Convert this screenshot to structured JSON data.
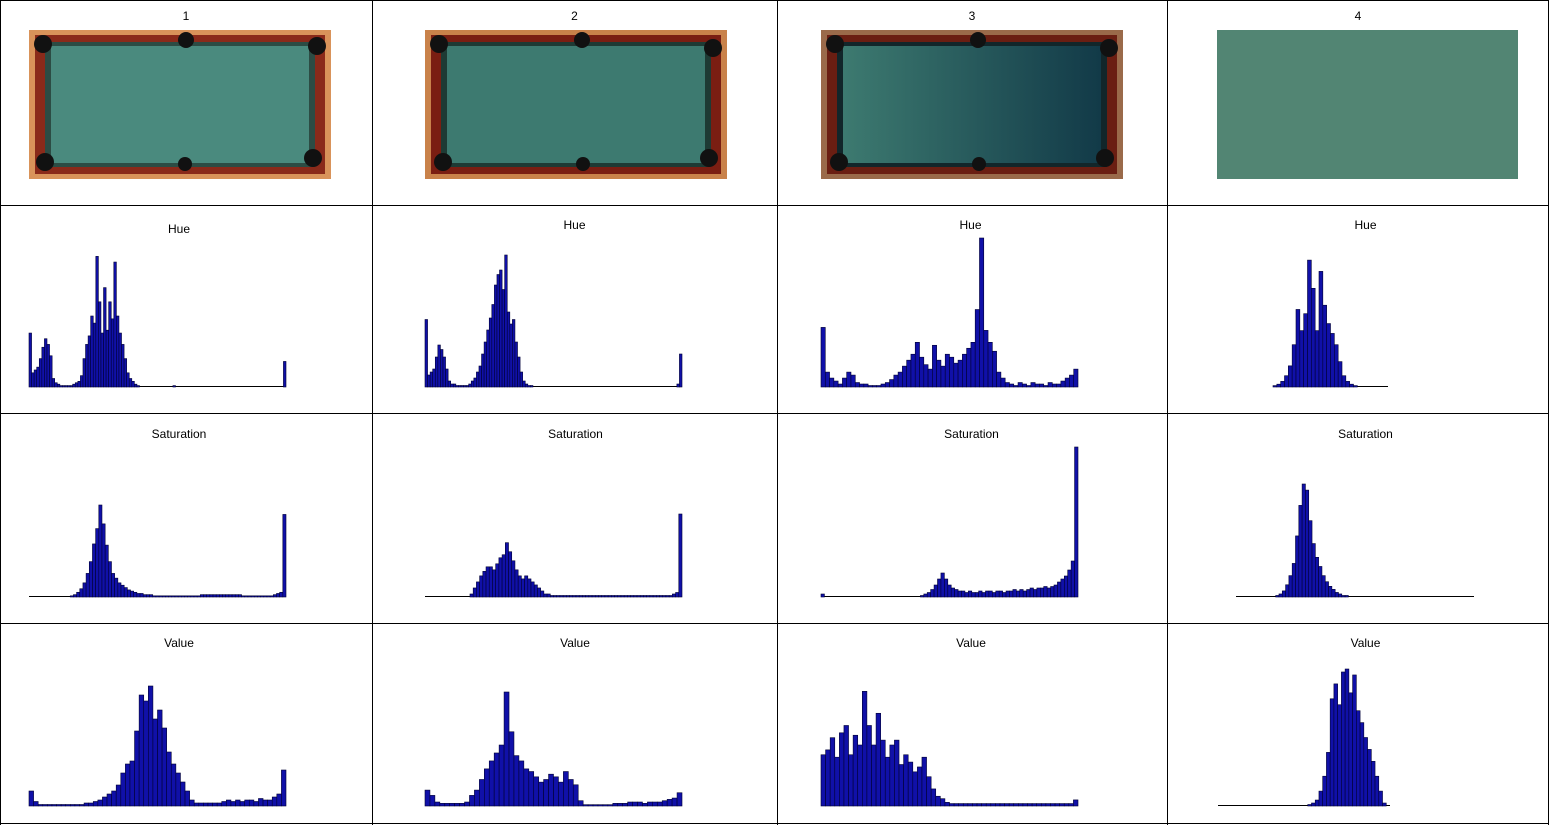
{
  "columns": [
    {
      "label": "1",
      "image": "pool-table-full-bright"
    },
    {
      "label": "2",
      "image": "pool-table-full-medium"
    },
    {
      "label": "3",
      "image": "pool-table-full-dark"
    },
    {
      "label": "4",
      "image": "pool-table-felt-crop"
    }
  ],
  "row_titles": {
    "hue": "Hue",
    "saturation": "Saturation",
    "value": "Value"
  },
  "colors": {
    "bar_fill": "#1010a8",
    "bar_edge": "#000033",
    "felt": "#3d7a70",
    "rail": "#8a2a1a",
    "wood": "#d79a5a"
  },
  "chart_data": [
    {
      "type": "bar",
      "title": "Hue",
      "column": "1",
      "values": [
        38,
        10,
        12,
        14,
        20,
        28,
        34,
        30,
        22,
        6,
        3,
        2,
        1,
        1,
        1,
        1,
        1,
        2,
        3,
        4,
        8,
        20,
        30,
        36,
        50,
        45,
        92,
        60,
        38,
        70,
        40,
        60,
        48,
        88,
        50,
        38,
        30,
        20,
        10,
        6,
        4,
        2,
        1,
        0,
        0,
        0,
        0,
        0,
        0,
        0,
        0,
        0,
        0,
        0,
        0,
        0,
        1,
        0,
        0,
        0,
        0,
        0,
        0,
        0,
        0,
        0,
        0,
        0,
        0,
        0,
        0,
        0,
        0,
        0,
        0,
        0,
        0,
        0,
        0,
        0,
        0,
        0,
        0,
        0,
        0,
        0,
        0,
        0,
        0,
        0,
        0,
        0,
        0,
        0,
        0,
        0,
        0,
        0,
        0,
        18
      ]
    },
    {
      "type": "bar",
      "title": "Hue",
      "column": "2",
      "values": [
        45,
        8,
        10,
        12,
        20,
        28,
        25,
        20,
        12,
        4,
        2,
        2,
        1,
        1,
        1,
        1,
        1,
        2,
        4,
        6,
        10,
        14,
        22,
        30,
        38,
        46,
        55,
        68,
        75,
        78,
        65,
        88,
        50,
        42,
        45,
        30,
        20,
        10,
        4,
        2,
        1,
        1,
        0,
        0,
        0,
        0,
        0,
        0,
        0,
        0,
        0,
        0,
        0,
        0,
        0,
        0,
        0,
        0,
        0,
        0,
        0,
        0,
        0,
        0,
        0,
        0,
        0,
        0,
        0,
        0,
        0,
        0,
        0,
        0,
        0,
        0,
        0,
        0,
        0,
        0,
        0,
        0,
        0,
        0,
        0,
        0,
        0,
        0,
        0,
        0,
        0,
        0,
        0,
        0,
        0,
        0,
        0,
        0,
        2,
        22
      ]
    },
    {
      "type": "bar",
      "title": "Hue",
      "column": "3",
      "values": [
        40,
        10,
        6,
        4,
        2,
        6,
        10,
        8,
        3,
        2,
        2,
        1,
        1,
        1,
        2,
        3,
        5,
        8,
        10,
        14,
        18,
        22,
        30,
        20,
        15,
        12,
        28,
        18,
        14,
        22,
        20,
        16,
        18,
        22,
        26,
        30,
        52,
        100,
        38,
        30,
        24,
        10,
        6,
        3,
        2,
        1,
        3,
        2,
        1,
        3,
        2,
        2,
        1,
        3,
        2,
        2,
        4,
        6,
        8,
        12
      ]
    },
    {
      "type": "bar",
      "title": "Hue",
      "column": "4",
      "values": [
        1,
        2,
        4,
        8,
        15,
        30,
        55,
        40,
        52,
        90,
        70,
        40,
        82,
        58,
        45,
        38,
        30,
        18,
        8,
        4,
        2,
        1,
        0,
        0,
        0,
        0,
        0,
        0,
        0,
        0
      ]
    },
    {
      "type": "bar",
      "title": "Saturation",
      "column": "1",
      "values": [
        0,
        0,
        0,
        0,
        0,
        0,
        0,
        0,
        0,
        0,
        0,
        0,
        0,
        1,
        2,
        4,
        7,
        12,
        20,
        30,
        45,
        58,
        78,
        62,
        44,
        30,
        20,
        16,
        12,
        10,
        8,
        6,
        5,
        4,
        3,
        3,
        2,
        2,
        2,
        1,
        1,
        1,
        1,
        1,
        1,
        1,
        1,
        1,
        1,
        1,
        1,
        1,
        1,
        1,
        2,
        2,
        2,
        2,
        2,
        2,
        2,
        2,
        2,
        2,
        2,
        2,
        2,
        1,
        1,
        1,
        1,
        1,
        1,
        1,
        1,
        1,
        1,
        2,
        3,
        4,
        70
      ]
    },
    {
      "type": "bar",
      "title": "Saturation",
      "column": "2",
      "values": [
        0,
        0,
        0,
        0,
        0,
        0,
        0,
        0,
        0,
        0,
        0,
        0,
        0,
        0,
        2,
        6,
        10,
        14,
        17,
        20,
        20,
        18,
        22,
        26,
        28,
        36,
        30,
        24,
        18,
        14,
        12,
        14,
        12,
        10,
        8,
        6,
        4,
        2,
        2,
        1,
        1,
        1,
        1,
        1,
        1,
        1,
        1,
        1,
        1,
        1,
        1,
        1,
        1,
        1,
        1,
        1,
        1,
        1,
        1,
        1,
        1,
        1,
        1,
        1,
        1,
        1,
        1,
        1,
        1,
        1,
        1,
        1,
        1,
        1,
        1,
        1,
        1,
        2,
        3,
        55
      ]
    },
    {
      "type": "bar",
      "title": "Saturation",
      "column": "3",
      "values": [
        2,
        0,
        0,
        0,
        0,
        0,
        0,
        0,
        0,
        0,
        0,
        0,
        0,
        0,
        0,
        0,
        0,
        0,
        0,
        0,
        0,
        0,
        0,
        0,
        0,
        0,
        0,
        0,
        0,
        1,
        2,
        3,
        5,
        8,
        12,
        16,
        12,
        8,
        6,
        5,
        4,
        4,
        3,
        4,
        3,
        3,
        4,
        3,
        4,
        4,
        3,
        4,
        4,
        3,
        4,
        4,
        5,
        4,
        5,
        4,
        5,
        6,
        5,
        6,
        6,
        7,
        6,
        7,
        8,
        10,
        12,
        14,
        18,
        24,
        100
      ]
    },
    {
      "type": "bar",
      "title": "Saturation",
      "column": "4",
      "values": [
        0,
        0,
        0,
        0,
        0,
        0,
        0,
        0,
        0,
        0,
        0,
        0,
        1,
        2,
        4,
        8,
        14,
        22,
        40,
        60,
        74,
        70,
        50,
        35,
        26,
        20,
        14,
        10,
        7,
        5,
        3,
        2,
        1,
        1,
        0,
        0,
        0,
        0,
        0,
        0,
        0,
        0,
        0,
        0,
        0,
        0,
        0,
        0,
        0,
        0,
        0,
        0,
        0,
        0,
        0,
        0,
        0,
        0,
        0,
        0,
        0,
        0,
        0,
        0,
        0,
        0,
        0,
        0,
        0,
        0,
        0,
        0
      ]
    },
    {
      "type": "bar",
      "title": "Value",
      "column": "1",
      "values": [
        10,
        3,
        1,
        1,
        1,
        1,
        1,
        1,
        1,
        1,
        1,
        1,
        2,
        2,
        3,
        4,
        6,
        8,
        10,
        14,
        22,
        28,
        30,
        50,
        74,
        70,
        80,
        58,
        64,
        52,
        36,
        28,
        22,
        16,
        10,
        4,
        2,
        2,
        2,
        2,
        2,
        2,
        3,
        4,
        3,
        4,
        3,
        4,
        4,
        3,
        5,
        4,
        4,
        6,
        8,
        24
      ]
    },
    {
      "type": "bar",
      "title": "Value",
      "column": "2",
      "values": [
        12,
        8,
        3,
        2,
        2,
        2,
        2,
        2,
        3,
        8,
        12,
        20,
        28,
        34,
        40,
        46,
        86,
        56,
        38,
        34,
        28,
        26,
        22,
        18,
        20,
        24,
        22,
        18,
        26,
        20,
        16,
        4,
        1,
        1,
        1,
        1,
        1,
        1,
        2,
        2,
        2,
        3,
        3,
        3,
        2,
        3,
        3,
        3,
        4,
        5,
        6,
        10
      ]
    },
    {
      "type": "bar",
      "title": "Value",
      "column": "3",
      "values": [
        42,
        46,
        56,
        40,
        60,
        66,
        42,
        58,
        50,
        94,
        66,
        50,
        76,
        54,
        40,
        50,
        54,
        34,
        42,
        36,
        28,
        32,
        40,
        24,
        14,
        8,
        6,
        3,
        2,
        2,
        2,
        2,
        2,
        2,
        2,
        2,
        2,
        2,
        2,
        2,
        2,
        2,
        2,
        2,
        2,
        2,
        2,
        2,
        2,
        2,
        2,
        2,
        2,
        2,
        2,
        5
      ]
    },
    {
      "type": "bar",
      "title": "Value",
      "column": "4",
      "values": [
        0,
        0,
        0,
        0,
        0,
        0,
        0,
        0,
        0,
        0,
        0,
        0,
        0,
        0,
        0,
        0,
        0,
        0,
        0,
        0,
        0,
        0,
        0,
        0,
        1,
        2,
        4,
        10,
        20,
        36,
        72,
        82,
        68,
        90,
        92,
        76,
        88,
        64,
        56,
        46,
        38,
        30,
        20,
        10,
        2,
        0
      ]
    }
  ]
}
